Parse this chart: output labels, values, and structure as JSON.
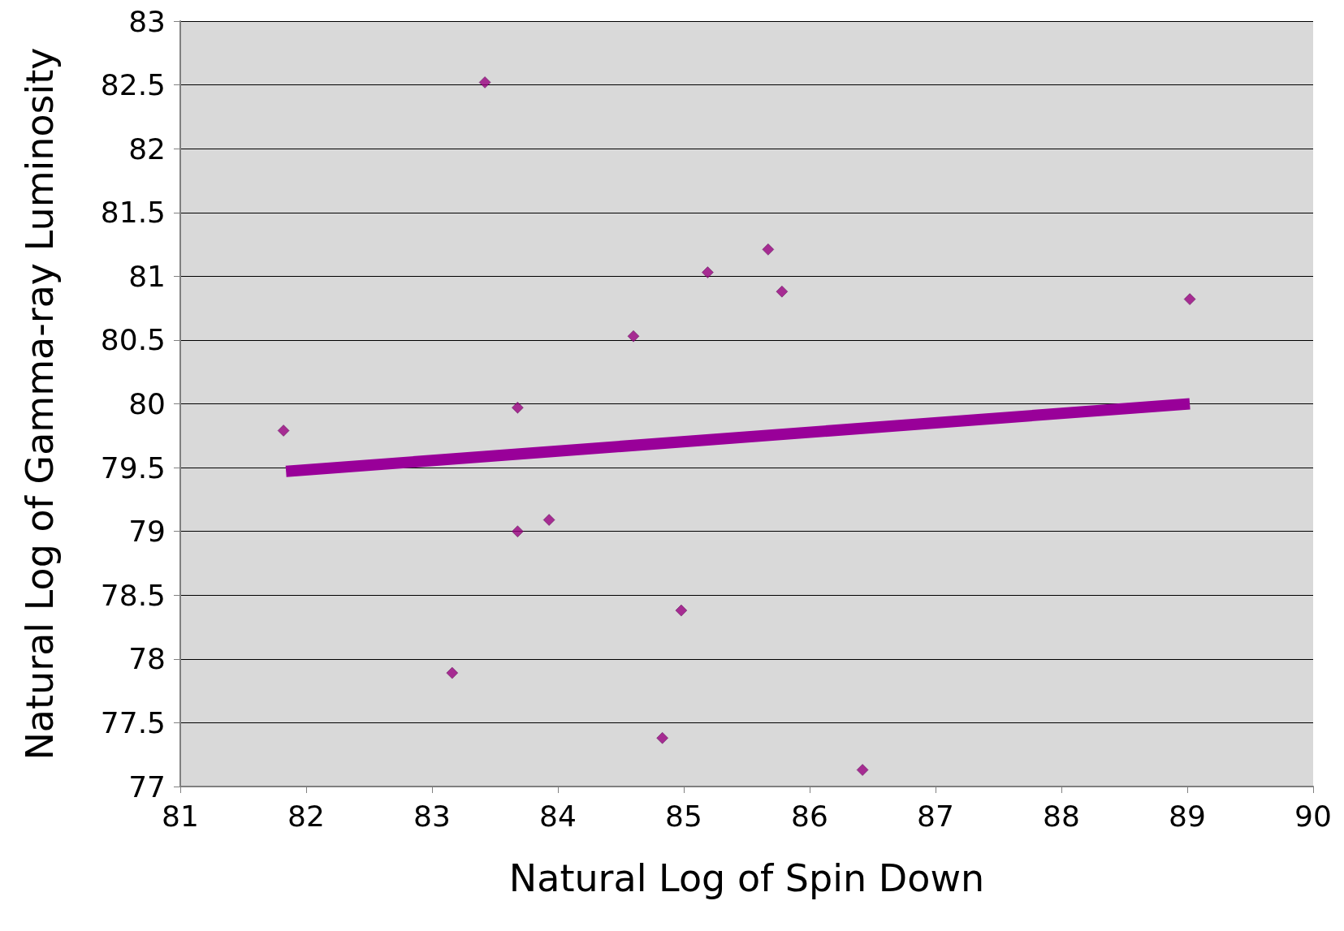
{
  "chart_data": {
    "type": "scatter",
    "xlabel": "Natural Log of Spin Down",
    "ylabel": "Natural Log of Gamma-ray Luminosity",
    "series": [
      {
        "color": "#990080",
        "marker": "diamond",
        "x": [
          81.82,
          83.42,
          83.68,
          83.68,
          83.93,
          83.16,
          84.6,
          85.19,
          85.67,
          85.78,
          84.98,
          84.83,
          86.42,
          89.02
        ],
        "values": [
          79.79,
          82.52,
          79.97,
          79.0,
          79.09,
          77.89,
          80.53,
          81.03,
          81.21,
          80.88,
          78.38,
          77.38,
          77.13,
          80.82
        ]
      },
      {
        "type": "line",
        "color": "#990099",
        "marker": "none",
        "x": [
          81.84,
          89.02
        ],
        "values": [
          79.47,
          80.0
        ]
      }
    ],
    "xlim": [
      81,
      90
    ],
    "xticks": [
      81,
      82,
      83,
      84,
      85,
      86,
      87,
      88,
      89,
      90
    ],
    "ylim": [
      77,
      83
    ],
    "yticks": [
      77,
      77.5,
      78,
      78.5,
      79,
      79.5,
      80,
      80.5,
      81,
      81.5,
      82,
      82.5,
      83
    ],
    "grid": "y"
  }
}
